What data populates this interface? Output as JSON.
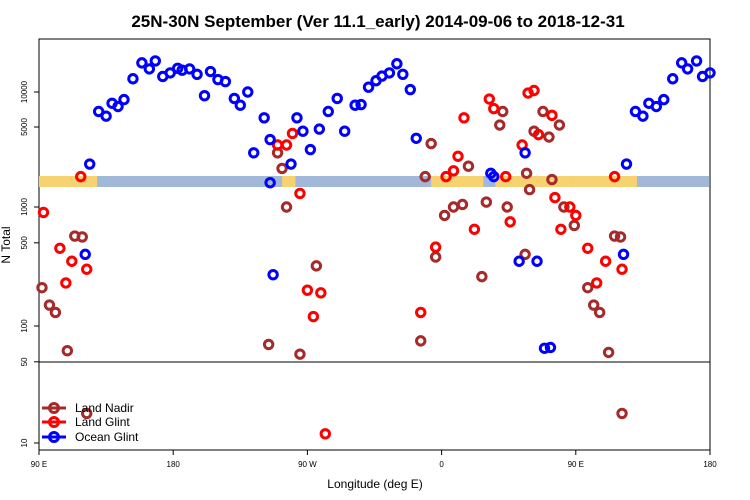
{
  "chart_data": {
    "type": "scatter",
    "title": "25N-30N September (Ver 11.1_early)   2014-09-06 to 2018-12-31",
    "xlabel": "Longitude (deg E)",
    "ylabel": "N Total",
    "x_scale": "longitude-wrapped",
    "xlim": [
      90,
      540
    ],
    "x_ticks": [
      {
        "value": 90,
        "label": "90 E"
      },
      {
        "value": 180,
        "label": "180"
      },
      {
        "value": 270,
        "label": "90 W"
      },
      {
        "value": 360,
        "label": "0"
      },
      {
        "value": 450,
        "label": "90 E"
      },
      {
        "value": 540,
        "label": "180"
      }
    ],
    "y_scale": "log",
    "y_top_ticks": [
      {
        "value": 5000,
        "label": "5000"
      },
      {
        "value": 10000,
        "label": "10000"
      }
    ],
    "y_mid_ticks": [
      {
        "value": 50,
        "label": "50"
      },
      {
        "value": 100,
        "label": "100"
      },
      {
        "value": 500,
        "label": "500"
      },
      {
        "value": 1000,
        "label": "1000"
      }
    ],
    "y_bottom_ticks": [
      {
        "value": 10,
        "label": "10"
      },
      {
        "value": 50,
        "label": "50"
      }
    ],
    "colors": {
      "land_nadir": "#a52a2a",
      "land_glint": "#ff0000",
      "ocean_glint": "#0000ff",
      "band_ocean": "#a2b8d8",
      "band_land": "#f7d270"
    },
    "legend": {
      "position": "bottom-left",
      "entries": [
        {
          "name": "Land Nadir",
          "color": "#a52a2a"
        },
        {
          "name": "Land Glint",
          "color": "#ff0000"
        },
        {
          "name": "Ocean Glint",
          "color": "#0000ff"
        }
      ]
    },
    "series": [
      {
        "name": "Land Nadir",
        "color": "#a52a2a",
        "points": [
          [
            92,
            210
          ],
          [
            97,
            150
          ],
          [
            101,
            130
          ],
          [
            109,
            62
          ],
          [
            114,
            570
          ],
          [
            119,
            560
          ],
          [
            122,
            18
          ],
          [
            244,
            70
          ],
          [
            250,
            3000
          ],
          [
            253,
            2200
          ],
          [
            256,
            1000
          ],
          [
            265,
            58
          ],
          [
            276,
            320
          ],
          [
            346,
            75
          ],
          [
            349,
            1800
          ],
          [
            353,
            3600
          ],
          [
            356,
            380
          ],
          [
            362,
            850
          ],
          [
            368,
            1000
          ],
          [
            374,
            1050
          ],
          [
            378,
            2300
          ],
          [
            387,
            260
          ],
          [
            390,
            1100
          ],
          [
            399,
            5200
          ],
          [
            401,
            6800
          ],
          [
            404,
            1000
          ],
          [
            416,
            400
          ],
          [
            419,
            1400
          ],
          [
            417,
            2000
          ],
          [
            422,
            4600
          ],
          [
            428,
            6800
          ],
          [
            432,
            4100
          ],
          [
            434,
            1700
          ],
          [
            439,
            5200
          ],
          [
            442,
            1000
          ],
          [
            449,
            700
          ],
          [
            458,
            210
          ],
          [
            462,
            150
          ],
          [
            466,
            130
          ],
          [
            472,
            60
          ],
          [
            476,
            570
          ],
          [
            480,
            560
          ],
          [
            481,
            18
          ]
        ]
      },
      {
        "name": "Land Glint",
        "color": "#ff0000",
        "points": [
          [
            93,
            900
          ],
          [
            104,
            450
          ],
          [
            108,
            230
          ],
          [
            112,
            350
          ],
          [
            118,
            1800
          ],
          [
            122,
            300
          ],
          [
            250,
            3500
          ],
          [
            256,
            3500
          ],
          [
            260,
            4400
          ],
          [
            265,
            1300
          ],
          [
            270,
            200
          ],
          [
            274,
            120
          ],
          [
            279,
            190
          ],
          [
            282,
            12
          ],
          [
            346,
            130
          ],
          [
            356,
            460
          ],
          [
            363,
            1800
          ],
          [
            368,
            2100
          ],
          [
            371,
            2800
          ],
          [
            375,
            6000
          ],
          [
            382,
            650
          ],
          [
            392,
            8700
          ],
          [
            395,
            7200
          ],
          [
            403,
            1800
          ],
          [
            406,
            750
          ],
          [
            414,
            3500
          ],
          [
            418,
            9800
          ],
          [
            422,
            10300
          ],
          [
            425,
            4300
          ],
          [
            434,
            6300
          ],
          [
            436,
            1200
          ],
          [
            440,
            650
          ],
          [
            446,
            1000
          ],
          [
            450,
            850
          ],
          [
            458,
            450
          ],
          [
            464,
            230
          ],
          [
            470,
            350
          ],
          [
            476,
            1800
          ],
          [
            481,
            300
          ]
        ]
      },
      {
        "name": "Ocean Glint",
        "color": "#0000ff",
        "points": [
          [
            121,
            400
          ],
          [
            124,
            2400
          ],
          [
            130,
            6800
          ],
          [
            135,
            6200
          ],
          [
            139,
            8000
          ],
          [
            143,
            7500
          ],
          [
            147,
            8600
          ],
          [
            153,
            13000
          ],
          [
            159,
            17800
          ],
          [
            164,
            15800
          ],
          [
            168,
            18500
          ],
          [
            173,
            13600
          ],
          [
            178,
            14600
          ],
          [
            183,
            16000
          ],
          [
            186,
            15400
          ],
          [
            191,
            15800
          ],
          [
            196,
            14200
          ],
          [
            201,
            9300
          ],
          [
            205,
            15000
          ],
          [
            210,
            12800
          ],
          [
            215,
            12300
          ],
          [
            221,
            8800
          ],
          [
            225,
            7700
          ],
          [
            230,
            10000
          ],
          [
            234,
            3000
          ],
          [
            241,
            6000
          ],
          [
            245,
            3900
          ],
          [
            245,
            1600
          ],
          [
            247,
            270
          ],
          [
            259,
            2400
          ],
          [
            263,
            6000
          ],
          [
            267,
            4600
          ],
          [
            272,
            3200
          ],
          [
            278,
            4800
          ],
          [
            284,
            6800
          ],
          [
            290,
            8800
          ],
          [
            295,
            4600
          ],
          [
            302,
            7700
          ],
          [
            306,
            7800
          ],
          [
            311,
            11000
          ],
          [
            316,
            12500
          ],
          [
            320,
            13700
          ],
          [
            325,
            14600
          ],
          [
            330,
            17500
          ],
          [
            334,
            14200
          ],
          [
            339,
            10500
          ],
          [
            343,
            4000
          ],
          [
            393,
            2000
          ],
          [
            395,
            1800
          ],
          [
            412,
            350
          ],
          [
            416,
            3000
          ],
          [
            424,
            350
          ],
          [
            429,
            65
          ],
          [
            433,
            66
          ],
          [
            482,
            400
          ],
          [
            484,
            2400
          ],
          [
            490,
            6800
          ],
          [
            495,
            6200
          ],
          [
            499,
            8000
          ],
          [
            504,
            7500
          ],
          [
            509,
            8600
          ],
          [
            515,
            13000
          ],
          [
            521,
            17800
          ],
          [
            525,
            15800
          ],
          [
            531,
            18500
          ],
          [
            535,
            13600
          ],
          [
            540,
            14600
          ]
        ]
      }
    ]
  }
}
